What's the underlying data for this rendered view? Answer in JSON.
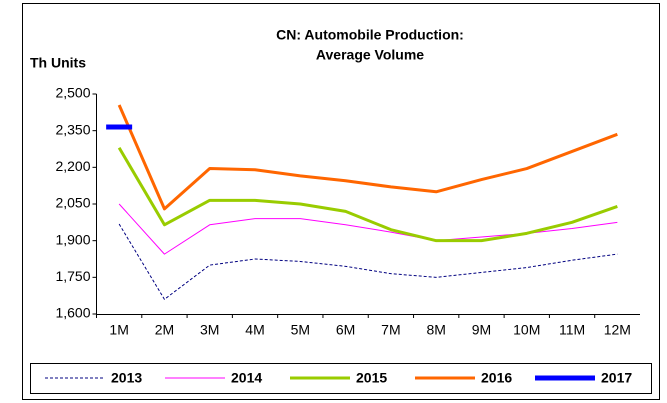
{
  "chart_data": {
    "type": "line",
    "title": [
      "CN: Automobile Production:",
      "Average Volume"
    ],
    "y_label": "Th Units",
    "categories": [
      "1M",
      "2M",
      "3M",
      "4M",
      "5M",
      "6M",
      "7M",
      "8M",
      "9M",
      "10M",
      "11M",
      "12M"
    ],
    "ylim": [
      1600,
      2500
    ],
    "yticks": [
      {
        "value": 1600,
        "label": "1,600"
      },
      {
        "value": 1750,
        "label": "1,750"
      },
      {
        "value": 1900,
        "label": "1,900"
      },
      {
        "value": 2050,
        "label": "2,050"
      },
      {
        "value": 2200,
        "label": "2,200"
      },
      {
        "value": 2350,
        "label": "2,350"
      },
      {
        "value": 2500,
        "label": "2,500"
      }
    ],
    "legend": "bottom",
    "series": [
      {
        "name": "2013",
        "color": "#000080",
        "line_width": 1,
        "dashed": true,
        "values": [
          1968,
          1660,
          1800,
          1825,
          1815,
          1795,
          1765,
          1750,
          1770,
          1790,
          1820,
          1845
        ]
      },
      {
        "name": "2014",
        "color": "#ff00ff",
        "line_width": 1,
        "dashed": false,
        "values": [
          2050,
          1845,
          1965,
          1990,
          1990,
          1965,
          1935,
          1900,
          1915,
          1930,
          1950,
          1975
        ]
      },
      {
        "name": "2015",
        "color": "#99cc00",
        "line_width": 3,
        "dashed": false,
        "values": [
          2280,
          1965,
          2065,
          2065,
          2050,
          2020,
          1945,
          1900,
          1900,
          1930,
          1975,
          2040
        ]
      },
      {
        "name": "2016",
        "color": "#ff6600",
        "line_width": 3,
        "dashed": false,
        "values": [
          2455,
          2030,
          2195,
          2190,
          2165,
          2145,
          2120,
          2100,
          2150,
          2195,
          2265,
          2335
        ]
      },
      {
        "name": "2017",
        "color": "#0000ff",
        "line_width": 5,
        "dashed": false,
        "values": [
          2365,
          null,
          null,
          null,
          null,
          null,
          null,
          null,
          null,
          null,
          null,
          null
        ]
      }
    ]
  }
}
